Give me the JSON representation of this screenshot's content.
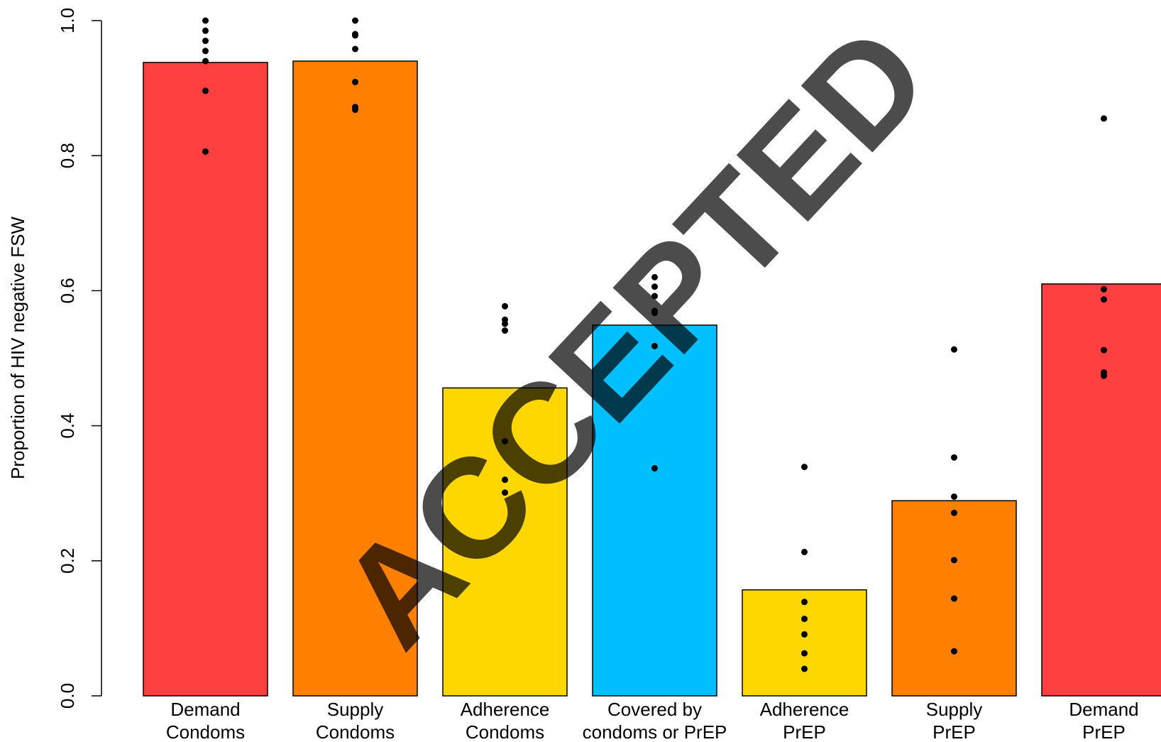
{
  "chart_data": {
    "type": "bar",
    "title": "",
    "xlabel": "",
    "ylabel": "Proportion of HIV negative FSW",
    "ylim": [
      0,
      1
    ],
    "yticks": [
      "0.0",
      "0.2",
      "0.4",
      "0.6",
      "0.8",
      "1.0"
    ],
    "grid": false,
    "legend": "none",
    "categories": [
      [
        "Demand",
        "Condoms"
      ],
      [
        "Supply",
        "Condoms"
      ],
      [
        "Adherence",
        "Condoms"
      ],
      [
        "Covered by",
        "condoms or PrEP"
      ],
      [
        "Adherence",
        "PrEP"
      ],
      [
        "Supply",
        "PrEP"
      ],
      [
        "Demand",
        "PrEP"
      ]
    ],
    "values": [
      0.938,
      0.94,
      0.456,
      0.549,
      0.157,
      0.289,
      0.61
    ],
    "colors": [
      "#FF4040",
      "#FF7F00",
      "#FFD700",
      "#00BFFF",
      "#FFD700",
      "#FF7F00",
      "#FF4040"
    ],
    "points": [
      [
        1.0,
        0.985,
        0.97,
        0.955,
        0.94,
        0.896,
        0.806
      ],
      [
        1.0,
        0.98,
        0.978,
        0.958,
        0.909,
        0.872,
        0.868
      ],
      [
        0.577,
        0.557,
        0.551,
        0.541,
        0.377,
        0.32,
        0.301
      ],
      [
        0.62,
        0.606,
        0.592,
        0.57,
        0.567,
        0.518,
        0.337
      ],
      [
        0.339,
        0.213,
        0.139,
        0.114,
        0.091,
        0.063,
        0.04
      ],
      [
        0.513,
        0.353,
        0.295,
        0.271,
        0.201,
        0.144,
        0.066
      ],
      [
        0.855,
        0.602,
        0.587,
        0.512,
        0.479,
        0.474
      ]
    ]
  },
  "watermark": {
    "text": "ACCEPTED",
    "color": "#b3b3b3"
  }
}
